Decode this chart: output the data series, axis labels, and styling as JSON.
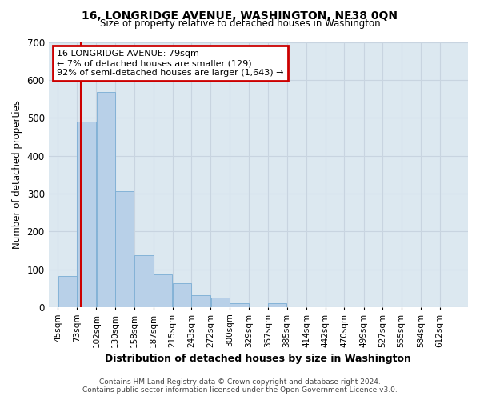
{
  "title": "16, LONGRIDGE AVENUE, WASHINGTON, NE38 0QN",
  "subtitle": "Size of property relative to detached houses in Washington",
  "xlabel": "Distribution of detached houses by size in Washington",
  "ylabel": "Number of detached properties",
  "bar_labels": [
    "45sqm",
    "73sqm",
    "102sqm",
    "130sqm",
    "158sqm",
    "187sqm",
    "215sqm",
    "243sqm",
    "272sqm",
    "300sqm",
    "329sqm",
    "357sqm",
    "385sqm",
    "414sqm",
    "442sqm",
    "470sqm",
    "499sqm",
    "527sqm",
    "555sqm",
    "584sqm",
    "612sqm"
  ],
  "bar_values": [
    83,
    490,
    567,
    307,
    137,
    86,
    64,
    32,
    26,
    10,
    0,
    10,
    0,
    0,
    0,
    0,
    0,
    0,
    0,
    0,
    0
  ],
  "bar_color": "#b8d0e8",
  "bar_edge_color": "#7aadd4",
  "property_sqm": 79,
  "annotation_title": "16 LONGRIDGE AVENUE: 79sqm",
  "annotation_line1": "← 7% of detached houses are smaller (129)",
  "annotation_line2": "92% of semi-detached houses are larger (1,643) →",
  "annotation_box_color": "#ffffff",
  "annotation_border_color": "#cc0000",
  "vline_color": "#cc0000",
  "ylim": [
    0,
    700
  ],
  "yticks": [
    0,
    100,
    200,
    300,
    400,
    500,
    600,
    700
  ],
  "grid_color": "#c8d4e0",
  "bg_color": "#dce8f0",
  "footer_line1": "Contains HM Land Registry data © Crown copyright and database right 2024.",
  "footer_line2": "Contains public sector information licensed under the Open Government Licence v3.0."
}
